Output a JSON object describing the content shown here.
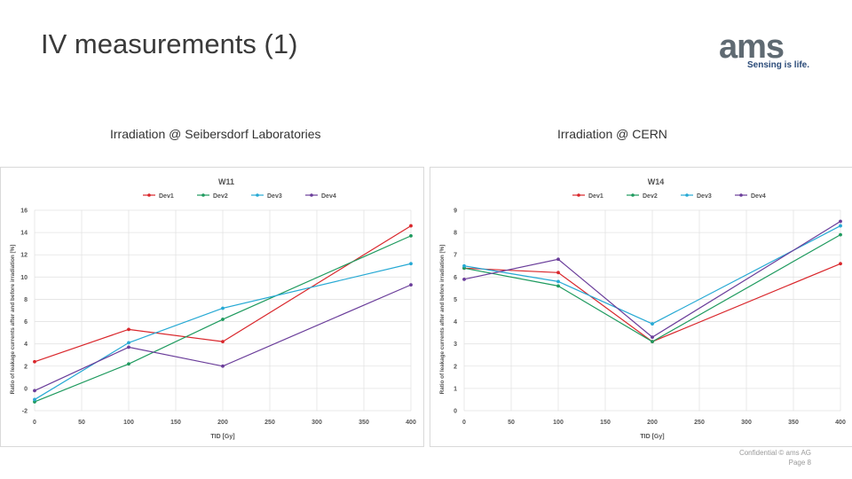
{
  "slide": {
    "title": "IV measurements (1)",
    "logo": {
      "wordmark": "ams",
      "tagline": "Sensing is life."
    },
    "captions": {
      "left": "Irradiation @ Seibersdorf Laboratories",
      "right": "Irradiation @ CERN"
    },
    "footer": {
      "line1": "Confidential © ams AG",
      "line2": "Page 8"
    }
  },
  "chart_data": [
    {
      "type": "line",
      "title": "W11",
      "xlabel": "TID [Gy]",
      "ylabel": "Ratio of leakage currents after and before irradiation [%]",
      "x": [
        0,
        100,
        200,
        400
      ],
      "xticks": [
        0,
        50,
        100,
        150,
        200,
        250,
        300,
        350,
        400
      ],
      "yticks": [
        -2,
        0,
        2,
        4,
        6,
        8,
        10,
        12,
        14,
        16
      ],
      "xlim": [
        0,
        400
      ],
      "ylim": [
        -2,
        16
      ],
      "grid": true,
      "legend": "top",
      "series": [
        {
          "name": "Dev1",
          "color": "#d9262b",
          "values": [
            2.4,
            5.3,
            4.2,
            14.6
          ]
        },
        {
          "name": "Dev2",
          "color": "#1e9a5e",
          "values": [
            -1.2,
            2.2,
            6.2,
            13.7
          ]
        },
        {
          "name": "Dev3",
          "color": "#26a9d4",
          "values": [
            -1.0,
            4.1,
            7.2,
            11.2
          ]
        },
        {
          "name": "Dev4",
          "color": "#6a3d9a",
          "values": [
            -0.2,
            3.7,
            2.0,
            9.3
          ]
        }
      ]
    },
    {
      "type": "line",
      "title": "W14",
      "xlabel": "TID [Gy]",
      "ylabel": "Ratio of leakage currents after and before irradiation [%]",
      "x": [
        0,
        100,
        200,
        400
      ],
      "xticks": [
        0,
        50,
        100,
        150,
        200,
        250,
        300,
        350,
        400
      ],
      "yticks": [
        0,
        1,
        2,
        3,
        4,
        5,
        6,
        7,
        8,
        9
      ],
      "xlim": [
        0,
        400
      ],
      "ylim": [
        0,
        9
      ],
      "grid": true,
      "legend": "top",
      "series": [
        {
          "name": "Dev1",
          "color": "#d9262b",
          "values": [
            6.4,
            6.2,
            3.1,
            6.6
          ]
        },
        {
          "name": "Dev2",
          "color": "#1e9a5e",
          "values": [
            6.4,
            5.6,
            3.1,
            7.9
          ]
        },
        {
          "name": "Dev3",
          "color": "#26a9d4",
          "values": [
            6.5,
            5.8,
            3.9,
            8.3
          ]
        },
        {
          "name": "Dev4",
          "color": "#6a3d9a",
          "values": [
            5.9,
            6.8,
            3.3,
            8.5
          ]
        }
      ]
    }
  ]
}
